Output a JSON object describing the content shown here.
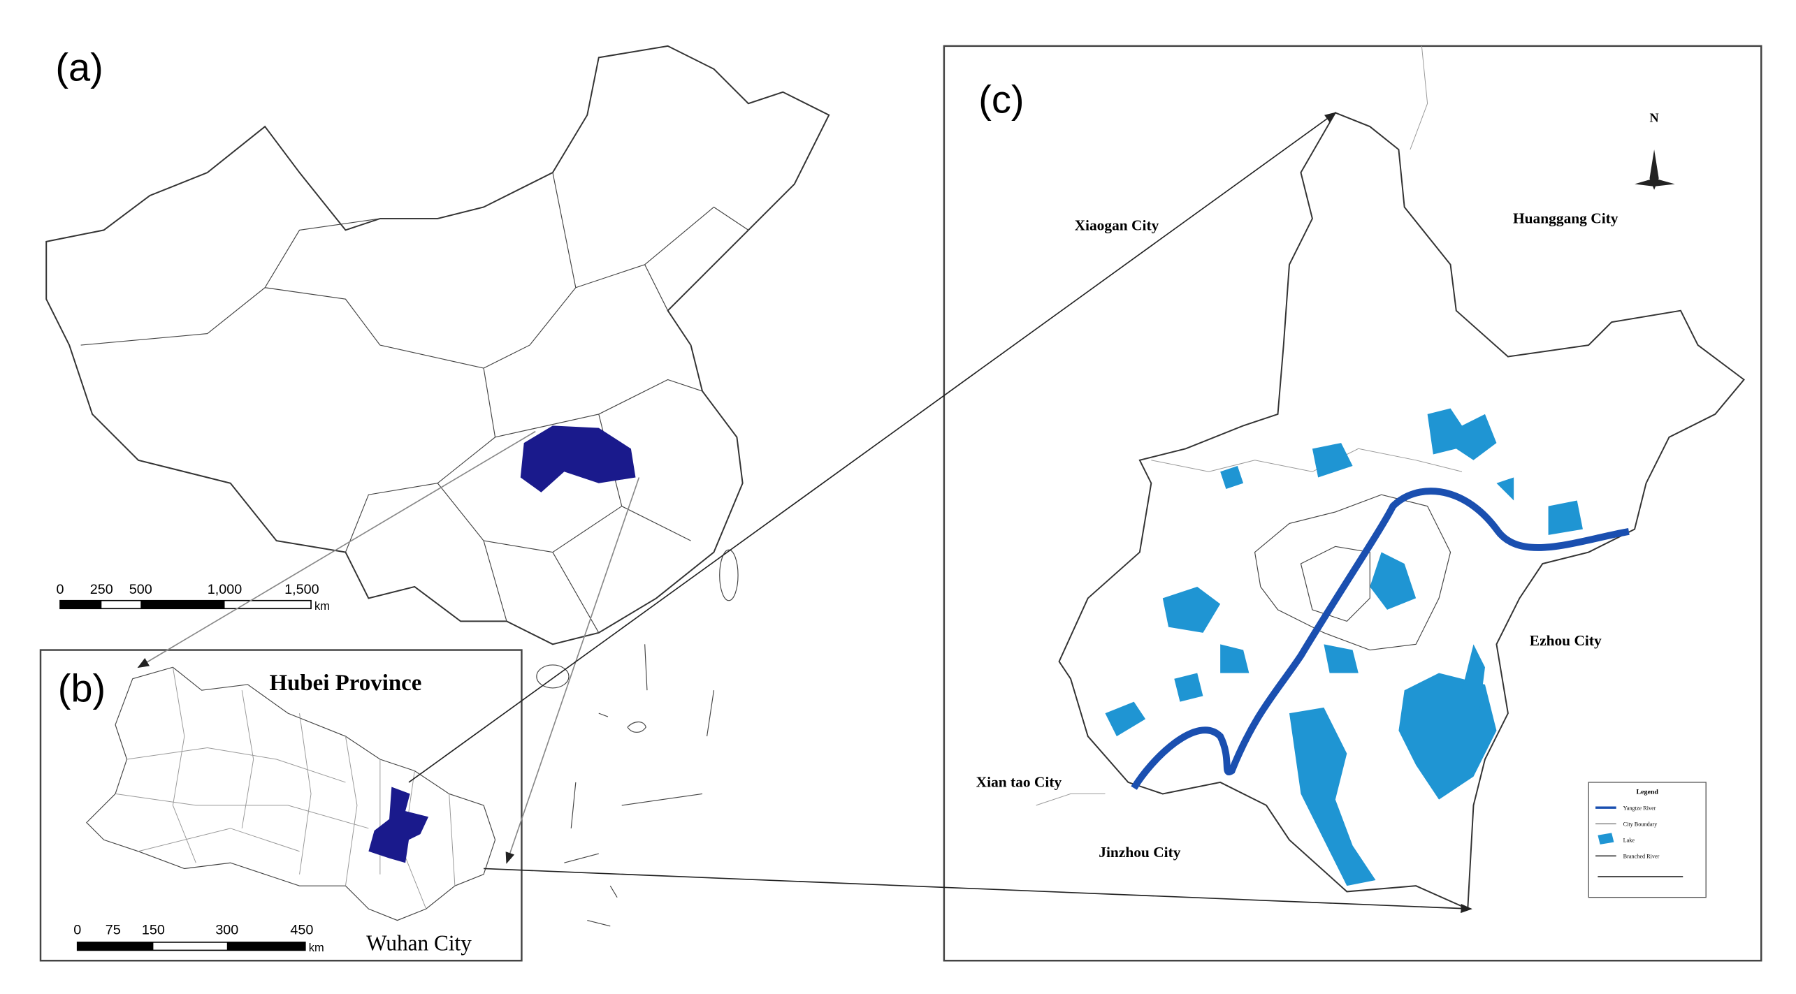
{
  "panel_a": {
    "label": "(a)",
    "scale_bar": [
      "0",
      "250",
      "500",
      "1,000",
      "1,500"
    ],
    "scale_unit": "km"
  },
  "panel_b": {
    "label": "(b)",
    "title": "Hubei Province",
    "city": "Wuhan City",
    "scale_bar": [
      "0",
      "75",
      "150",
      "300",
      "450"
    ],
    "scale_unit": "km"
  },
  "panel_c": {
    "label": "(c)",
    "north": "N",
    "cities": [
      "Xiaogan City",
      "Huanggang City",
      "Ezhou City",
      "Xian tao City",
      "Jinzhou City"
    ],
    "legend": {
      "title": "Legend",
      "items": [
        "Yangtze River",
        "City Boundary",
        "Lake",
        "Branched River"
      ]
    }
  }
}
